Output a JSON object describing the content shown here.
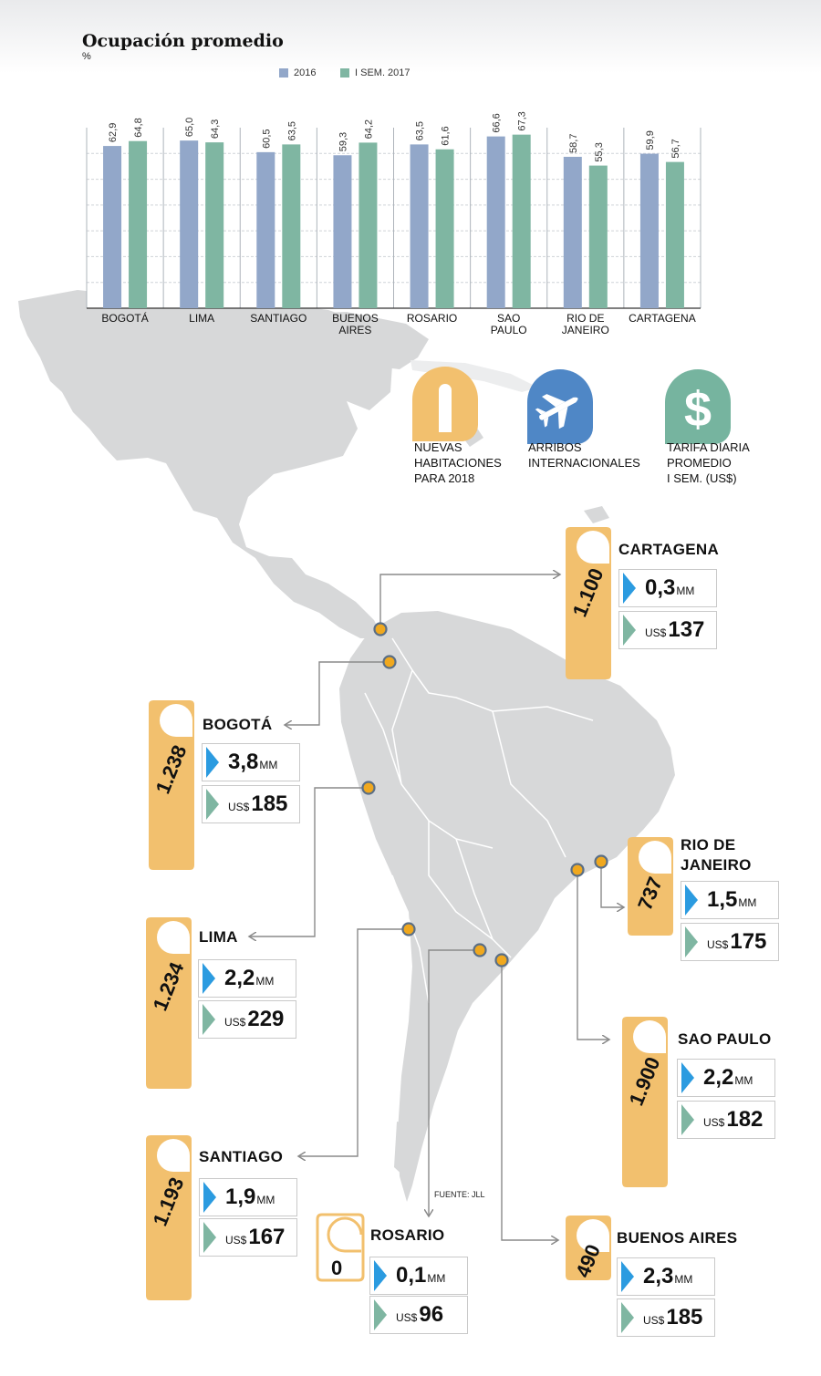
{
  "chart_data": {
    "type": "bar",
    "title": "Ocupación promedio",
    "ylabel": "%",
    "ylim": [
      0,
      70
    ],
    "grid": true,
    "legend_position": "top",
    "categories": [
      "BOGOTÁ",
      "LIMA",
      "SANTIAGO",
      "BUENOS AIRES",
      "ROSARIO",
      "SAO PAULO",
      "RIO DE JANEIRO",
      "CARTAGENA"
    ],
    "category_labels": [
      [
        "BOGOTÁ"
      ],
      [
        "LIMA"
      ],
      [
        "SANTIAGO"
      ],
      [
        "BUENOS",
        "AIRES"
      ],
      [
        "ROSARIO"
      ],
      [
        "SAO",
        "PAULO"
      ],
      [
        "RIO DE",
        "JANEIRO"
      ],
      [
        "CARTAGENA"
      ]
    ],
    "series": [
      {
        "name": "2016",
        "color": "#92a7c9",
        "values": [
          62.9,
          65.0,
          60.5,
          59.3,
          63.5,
          66.6,
          58.7,
          59.9
        ],
        "labels": [
          "62,9",
          "65,0",
          "60,5",
          "59,3",
          "63,5",
          "66,6",
          "58,7",
          "59,9"
        ]
      },
      {
        "name": "I SEM. 2017",
        "color": "#7fb6a2",
        "values": [
          64.8,
          64.3,
          63.5,
          64.2,
          61.6,
          67.3,
          55.3,
          56.7
        ],
        "labels": [
          "64,8",
          "64,3",
          "63,5",
          "64,2",
          "61,6",
          "67,3",
          "55,3",
          "56,7"
        ]
      }
    ]
  },
  "icon_legend": {
    "rooms": "NUEVAS\nHABITACIONES\nPARA 2018",
    "arrivals": "ARRIBOS\nINTERNACIONALES",
    "rate": "TARIFA DIARIA\nPROMEDIO\nI SEM. (US$)"
  },
  "cities": {
    "cartagena": {
      "name": "CARTAGENA",
      "rooms": "1.100",
      "arrivals": "0,3",
      "unit": "MM",
      "currency": "US$",
      "rate": "137"
    },
    "bogota": {
      "name": "BOGOTÁ",
      "rooms": "1.238",
      "arrivals": "3,8",
      "unit": "MM",
      "currency": "US$",
      "rate": "185"
    },
    "lima": {
      "name": "LIMA",
      "rooms": "1.234",
      "arrivals": "2,2",
      "unit": "MM",
      "currency": "US$",
      "rate": "229"
    },
    "santiago": {
      "name": "SANTIAGO",
      "rooms": "1.193",
      "arrivals": "1,9",
      "unit": "MM",
      "currency": "US$",
      "rate": "167"
    },
    "rosario": {
      "name": "ROSARIO",
      "rooms": "0",
      "arrivals": "0,1",
      "unit": "MM",
      "currency": "US$",
      "rate": "96"
    },
    "rio": {
      "name": "RIO DE\nJANEIRO",
      "rooms": "737",
      "arrivals": "1,5",
      "unit": "MM",
      "currency": "US$",
      "rate": "175"
    },
    "saopaulo": {
      "name": "SAO PAULO",
      "rooms": "1.900",
      "arrivals": "2,2",
      "unit": "MM",
      "currency": "US$",
      "rate": "182"
    },
    "buenosaires": {
      "name": "BUENOS AIRES",
      "rooms": "490",
      "arrivals": "2,3",
      "unit": "MM",
      "currency": "US$",
      "rate": "185"
    }
  },
  "source": "FUENTE: JLL",
  "colors": {
    "map": "#d7d8d9",
    "hanger": "#f2c06e",
    "arrow_blue": "#2b9be0",
    "arrow_teal": "#7fb6a2",
    "plane_icon": "#4f87c6",
    "dollar_icon": "#76b49f",
    "dot": "#f0a81e"
  }
}
